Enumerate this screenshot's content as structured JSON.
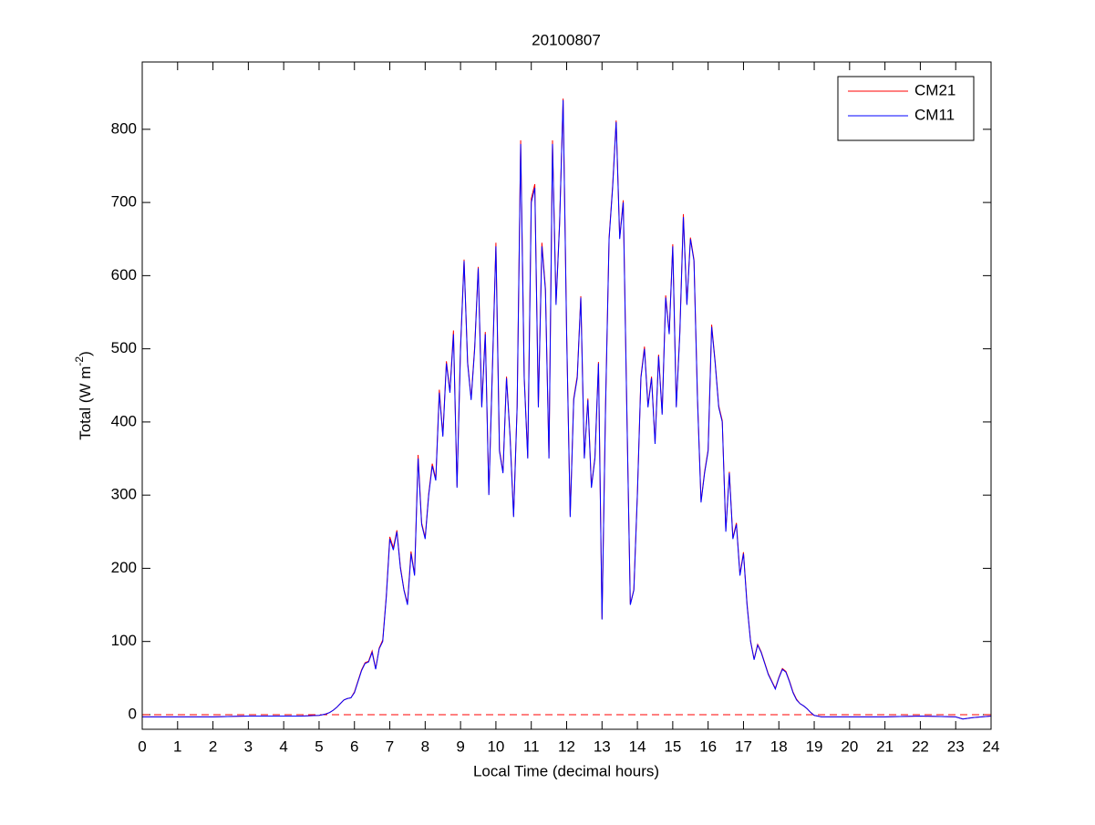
{
  "chart_data": {
    "type": "line",
    "title": "20100807",
    "xlabel": "Local Time (decimal hours)",
    "ylabel_parts": [
      "Total (W m",
      "-2",
      ")"
    ],
    "x": [
      0,
      1,
      2,
      3,
      4,
      4.5,
      5.0,
      5.1,
      5.2,
      5.3,
      5.4,
      5.5,
      5.6,
      5.7,
      5.8,
      5.9,
      6.0,
      6.1,
      6.2,
      6.3,
      6.4,
      6.5,
      6.6,
      6.7,
      6.8,
      6.9,
      7.0,
      7.1,
      7.2,
      7.3,
      7.4,
      7.5,
      7.6,
      7.7,
      7.8,
      7.9,
      8.0,
      8.1,
      8.2,
      8.3,
      8.4,
      8.5,
      8.6,
      8.7,
      8.8,
      8.9,
      9.0,
      9.1,
      9.2,
      9.3,
      9.4,
      9.5,
      9.6,
      9.7,
      9.8,
      9.9,
      10.0,
      10.1,
      10.2,
      10.3,
      10.4,
      10.5,
      10.6,
      10.7,
      10.8,
      10.9,
      11.0,
      11.1,
      11.2,
      11.3,
      11.4,
      11.5,
      11.6,
      11.7,
      11.8,
      11.9,
      12.0,
      12.1,
      12.2,
      12.3,
      12.4,
      12.5,
      12.6,
      12.7,
      12.8,
      12.9,
      13.0,
      13.1,
      13.2,
      13.3,
      13.4,
      13.5,
      13.6,
      13.7,
      13.8,
      13.9,
      14.0,
      14.1,
      14.2,
      14.3,
      14.4,
      14.5,
      14.6,
      14.7,
      14.8,
      14.9,
      15.0,
      15.1,
      15.2,
      15.3,
      15.4,
      15.5,
      15.6,
      15.7,
      15.8,
      15.9,
      16.0,
      16.1,
      16.2,
      16.3,
      16.4,
      16.5,
      16.6,
      16.7,
      16.8,
      16.9,
      17.0,
      17.1,
      17.2,
      17.3,
      17.4,
      17.5,
      17.6,
      17.7,
      17.8,
      17.9,
      18.0,
      18.1,
      18.2,
      18.3,
      18.4,
      18.5,
      18.6,
      18.7,
      18.8,
      18.9,
      19.0,
      19.1,
      19.2,
      19.3,
      19.4,
      19.5,
      20,
      21,
      22,
      23,
      23.2,
      23.5,
      24
    ],
    "series": [
      {
        "name": "CM21",
        "color": "#ff0000",
        "values": [
          -3,
          -3,
          -3,
          -2,
          -2,
          -2,
          -1,
          0,
          1,
          3,
          6,
          10,
          15,
          20,
          22,
          23,
          31,
          46,
          61,
          71,
          73,
          87,
          63,
          91,
          102,
          162,
          243,
          228,
          252,
          202,
          171,
          152,
          223,
          192,
          355,
          262,
          242,
          302,
          343,
          322,
          444,
          382,
          483,
          442,
          525,
          312,
          503,
          622,
          482,
          432,
          503,
          612,
          422,
          523,
          302,
          472,
          645,
          362,
          332,
          462,
          382,
          272,
          422,
          785,
          462,
          352,
          705,
          725,
          422,
          645,
          583,
          352,
          785,
          563,
          672,
          842,
          523,
          272,
          432,
          463,
          572,
          352,
          432,
          312,
          352,
          482,
          131,
          422,
          652,
          723,
          812,
          652,
          703,
          422,
          151,
          171,
          302,
          462,
          503,
          422,
          462,
          372,
          492,
          412,
          573,
          522,
          643,
          422,
          523,
          684,
          562,
          652,
          622,
          432,
          292,
          332,
          362,
          533,
          482,
          422,
          402,
          252,
          332,
          242,
          262,
          192,
          222,
          152,
          101,
          76,
          96,
          86,
          71,
          56,
          46,
          36,
          51,
          63,
          59,
          46,
          31,
          21,
          15,
          12,
          8,
          3,
          -1,
          -2,
          -3,
          -3,
          -3,
          -3,
          -3,
          -3,
          -2,
          -3,
          -6,
          -4,
          -2
        ]
      },
      {
        "name": "CM11",
        "color": "#0000ff",
        "values": [
          -3,
          -3,
          -3,
          -2,
          -2,
          -2,
          -1,
          0,
          1,
          3,
          6,
          10,
          15,
          20,
          22,
          23,
          30,
          45,
          60,
          70,
          72,
          85,
          62,
          90,
          100,
          160,
          240,
          225,
          250,
          200,
          170,
          150,
          220,
          190,
          350,
          260,
          240,
          300,
          340,
          320,
          440,
          380,
          480,
          440,
          520,
          310,
          500,
          620,
          480,
          430,
          500,
          610,
          420,
          520,
          300,
          470,
          640,
          360,
          330,
          460,
          380,
          270,
          420,
          780,
          460,
          350,
          700,
          720,
          420,
          640,
          580,
          350,
          780,
          560,
          670,
          840,
          520,
          270,
          430,
          460,
          570,
          350,
          430,
          310,
          350,
          480,
          130,
          420,
          650,
          720,
          810,
          650,
          700,
          420,
          150,
          170,
          300,
          460,
          500,
          420,
          460,
          370,
          490,
          410,
          570,
          520,
          640,
          420,
          520,
          680,
          560,
          650,
          620,
          430,
          290,
          330,
          360,
          530,
          480,
          420,
          400,
          250,
          330,
          240,
          260,
          190,
          220,
          150,
          100,
          75,
          95,
          85,
          70,
          55,
          45,
          35,
          50,
          62,
          58,
          45,
          30,
          20,
          15,
          12,
          8,
          3,
          -1,
          -2,
          -3,
          -3,
          -3,
          -3,
          -3,
          -3,
          -2,
          -3,
          -6,
          -4,
          -2
        ]
      }
    ],
    "reference_line": {
      "value": 0,
      "color": "#ff0000",
      "dashed": true
    },
    "xlim": [
      0,
      24
    ],
    "xticks": [
      0,
      1,
      2,
      3,
      4,
      5,
      6,
      7,
      8,
      9,
      10,
      11,
      12,
      13,
      14,
      15,
      16,
      17,
      18,
      19,
      20,
      21,
      22,
      23,
      24
    ],
    "ylim": [
      -20,
      892
    ],
    "yticks": [
      0,
      100,
      200,
      300,
      400,
      500,
      600,
      700,
      800
    ],
    "grid": false,
    "legend": "upper right"
  }
}
